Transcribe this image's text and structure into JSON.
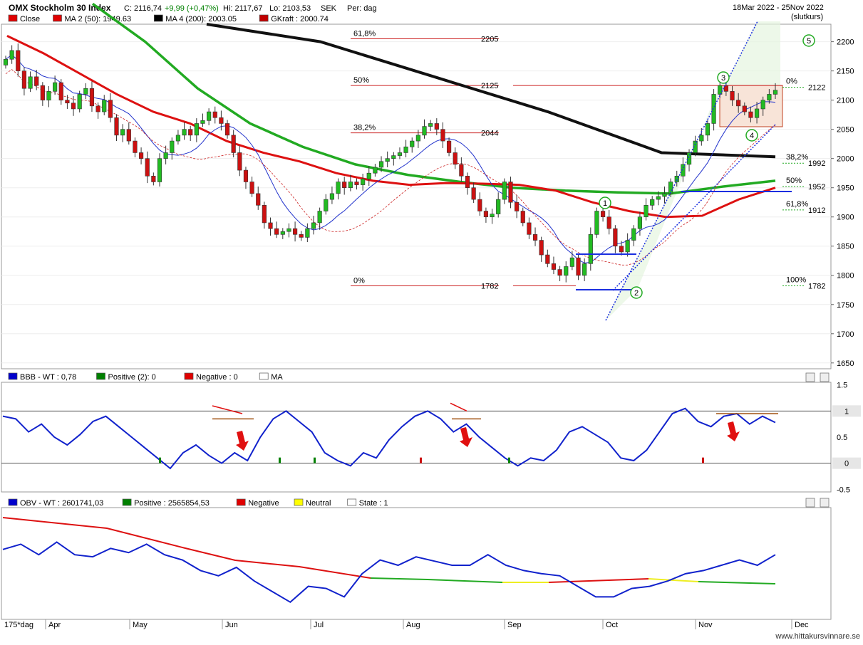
{
  "header": {
    "title": "OMX Stockholm 30 Index",
    "close": "C: 2116,74",
    "change": "+9,99 (+0,47%)",
    "hi": "Hi: 2117,67",
    "lo": "Lo: 2103,53",
    "currency": "SEK",
    "period": "Per: dag",
    "date_range": "18Mar 2022 - 25Nov 2022",
    "note": "(slutkurs)"
  },
  "legend_main": [
    {
      "label": "Close",
      "color": "#e00000"
    },
    {
      "label": "MA 2 (50): 1949.63",
      "color": "#e00000"
    },
    {
      "label": "MA 4 (200): 2003.05",
      "color": "#000000"
    },
    {
      "label": "GKraft : 2000.74",
      "color": "#c00000"
    }
  ],
  "legend_bbb": [
    {
      "label": "BBB - WT : 0,78",
      "color": "#0000cc"
    },
    {
      "label": "Positive (2): 0",
      "color": "#008000"
    },
    {
      "label": "Negative : 0",
      "color": "#e00000"
    },
    {
      "label": "MA",
      "color": "#ffffff"
    }
  ],
  "legend_obv": [
    {
      "label": "OBV - WT : 2601741,03",
      "color": "#0000cc"
    },
    {
      "label": "Positive : 2565854,53",
      "color": "#008000"
    },
    {
      "label": "Negative",
      "color": "#e00000"
    },
    {
      "label": "Neutral",
      "color": "#ffff00"
    },
    {
      "label": "State : 1",
      "color": "#ffffff"
    }
  ],
  "x_axis": {
    "first_label": "175*dag",
    "months": [
      "Apr",
      "May",
      "Jun",
      "Jul",
      "Aug",
      "Sep",
      "Oct",
      "Nov",
      "Dec"
    ]
  },
  "fib_left": [
    {
      "pct": "61,8%",
      "value": "2205"
    },
    {
      "pct": "50%",
      "value": "2125"
    },
    {
      "pct": "38,2%",
      "value": "2044"
    },
    {
      "pct": "0%",
      "value": "1782"
    }
  ],
  "fib_right": [
    {
      "pct": "0%",
      "value": "2122"
    },
    {
      "pct": "38,2%",
      "value": "1992"
    },
    {
      "pct": "50%",
      "value": "1952"
    },
    {
      "pct": "61,8%",
      "value": "1912"
    },
    {
      "pct": "100%",
      "value": "1782"
    }
  ],
  "wave_labels": [
    "1",
    "2",
    "3",
    "4",
    "5"
  ],
  "footer": "www.hittakursvinnare.se",
  "chart_data": [
    {
      "type": "candlestick",
      "title": "OMX Stockholm 30 Index",
      "y_ticks": [
        2200,
        2150,
        2100,
        2050,
        2000,
        1950,
        1900,
        1850,
        1800,
        1750,
        1700,
        1650
      ],
      "ylim": [
        1640,
        2230
      ],
      "series": [
        {
          "name": "Close",
          "values": [
            2170,
            2185,
            2150,
            2120,
            2140,
            2125,
            2100,
            2115,
            2130,
            2100,
            2095,
            2085,
            2110,
            2120,
            2090,
            2080,
            2100,
            2070,
            2040,
            2050,
            2030,
            2010,
            2000,
            1970,
            1960,
            2000,
            2010,
            2030,
            2040,
            2050,
            2040,
            2060,
            2065,
            2080,
            2070,
            2060,
            2040,
            2010,
            1980,
            1960,
            1940,
            1920,
            1890,
            1880,
            1870,
            1875,
            1880,
            1870,
            1865,
            1880,
            1890,
            1910,
            1930,
            1940,
            1960,
            1950,
            1960,
            1955,
            1965,
            1975,
            1985,
            1995,
            2000,
            2005,
            2010,
            2020,
            2030,
            2040,
            2055,
            2060,
            2050,
            2030,
            2010,
            1990,
            1970,
            1950,
            1930,
            1910,
            1900,
            1905,
            1930,
            1960,
            1925,
            1910,
            1890,
            1870,
            1860,
            1835,
            1820,
            1810,
            1800,
            1815,
            1830,
            1800,
            1820,
            1870,
            1910,
            1900,
            1880,
            1850,
            1840,
            1860,
            1880,
            1900,
            1920,
            1930,
            1935,
            1940,
            1960,
            1970,
            1990,
            2010,
            2030,
            2040,
            2060,
            2110,
            2125,
            2115,
            2100,
            2090,
            2080,
            2070,
            2085,
            2100,
            2110,
            2117
          ]
        },
        {
          "name": "MA 2 (50): 1949.63",
          "values": [
            2150,
            2070,
            1990,
            1965,
            1955,
            1952,
            1950
          ]
        },
        {
          "name": "MA 4 (200): 2003.05",
          "values": [
            2230,
            2200,
            2140,
            2080,
            2010,
            2003
          ]
        }
      ],
      "fibonacci_left": {
        "0%": 1782,
        "38,2%": 2044,
        "50%": 2125,
        "61,8%": 2205
      },
      "fibonacci_right": {
        "0%": 2122,
        "38,2%": 1992,
        "50%": 1952,
        "61,8%": 1912,
        "100%": 1782
      }
    },
    {
      "type": "line",
      "title": "BBB - WT : 0,78",
      "y_ticks": [
        1.5,
        1,
        0.5,
        0,
        -0.5
      ],
      "ylim": [
        -0.55,
        1.55
      ],
      "series": [
        {
          "name": "BBB - WT",
          "values": [
            0.9,
            0.85,
            0.6,
            0.75,
            0.5,
            0.35,
            0.55,
            0.8,
            0.9,
            0.7,
            0.5,
            0.3,
            0.1,
            -0.1,
            0.2,
            0.35,
            0.15,
            0.0,
            0.2,
            0.05,
            0.5,
            0.85,
            1.0,
            0.8,
            0.6,
            0.2,
            0.05,
            -0.05,
            0.2,
            0.1,
            0.45,
            0.7,
            0.9,
            1.0,
            0.85,
            0.6,
            0.75,
            0.5,
            0.3,
            0.1,
            -0.05,
            0.1,
            0.05,
            0.25,
            0.6,
            0.7,
            0.55,
            0.4,
            0.1,
            0.05,
            0.25,
            0.6,
            0.95,
            1.05,
            0.8,
            0.7,
            0.9,
            0.95,
            0.75,
            0.9,
            0.78
          ]
        },
        {
          "name": "Positive (2): 0",
          "values": []
        },
        {
          "name": "Negative : 0",
          "values": []
        }
      ]
    },
    {
      "type": "line",
      "title": "OBV - WT : 2601741,03",
      "series": [
        {
          "name": "OBV - WT",
          "values": [
            0.65,
            0.7,
            0.6,
            0.72,
            0.6,
            0.58,
            0.66,
            0.62,
            0.7,
            0.6,
            0.55,
            0.45,
            0.4,
            0.48,
            0.35,
            0.25,
            0.15,
            0.3,
            0.28,
            0.2,
            0.42,
            0.55,
            0.5,
            0.58,
            0.54,
            0.5,
            0.5,
            0.6,
            0.5,
            0.45,
            0.42,
            0.4,
            0.3,
            0.2,
            0.2,
            0.28,
            0.3,
            0.35,
            0.42,
            0.45,
            0.5,
            0.55,
            0.5,
            0.6
          ]
        },
        {
          "name": "Positive : 2565854,53",
          "values": []
        },
        {
          "name": "Negative",
          "values": []
        },
        {
          "name": "Neutral",
          "values": []
        }
      ]
    }
  ]
}
